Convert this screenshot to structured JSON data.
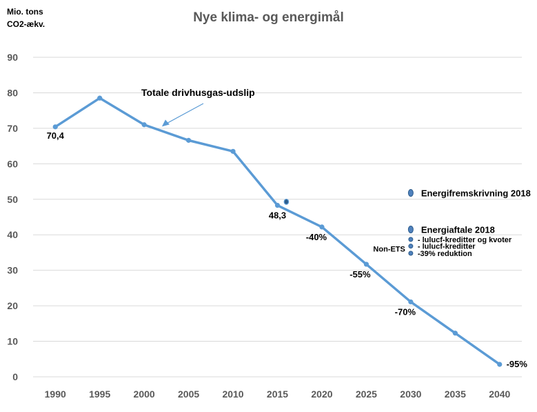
{
  "chart_data": {
    "type": "line",
    "title": "Nye klima- og energimål",
    "ylabel_lines": [
      "Mio. tons",
      "CO2-ækv."
    ],
    "xlabel": "",
    "ylim": [
      0,
      90
    ],
    "yticks": [
      0,
      10,
      20,
      30,
      40,
      50,
      60,
      70,
      80,
      90
    ],
    "xlim": [
      1987.5,
      2042.5
    ],
    "xticks": [
      1990,
      1995,
      2000,
      2005,
      2010,
      2015,
      2020,
      2025,
      2030,
      2035,
      2040
    ],
    "grid": "horizontal",
    "series": [
      {
        "name": "Totale drivhusgas-udslip",
        "x": [
          1990,
          1995,
          2000,
          2005,
          2010,
          2015,
          2020,
          2025,
          2030,
          2035,
          2040
        ],
        "y": [
          70.4,
          78.5,
          71.0,
          66.6,
          63.5,
          48.3,
          42.2,
          31.7,
          21.1,
          12.3,
          3.5
        ]
      }
    ],
    "extra_points": [
      {
        "x": 2016,
        "y": 49.3
      }
    ],
    "data_labels": [
      {
        "x": 1990,
        "y": 70.4,
        "text": "70,4"
      },
      {
        "x": 2015,
        "y": 48.3,
        "text": "48,3"
      },
      {
        "x": 2020,
        "y": 42.2,
        "text": "-40%"
      },
      {
        "x": 2025,
        "y": 31.7,
        "text": "-55%"
      },
      {
        "x": 2030,
        "y": 21.1,
        "text": "-70%"
      },
      {
        "x": 2040,
        "y": 3.5,
        "text": "-95%"
      }
    ],
    "annotation": {
      "text": "Totale drivhusgas-udslip",
      "arrow_to": {
        "x": 2002,
        "y": 70.5
      }
    },
    "markers_2030": [
      {
        "y": 51.8,
        "text": "Energifremskrivning 2018",
        "bold": true
      },
      {
        "y": 41.5,
        "text": "Energiaftale 2018",
        "bold": true
      },
      {
        "y": 38.7,
        "text": "- lulucf-kreditter og kvoter",
        "bold": false
      },
      {
        "y": 36.8,
        "text": "- lulucf-kreditter",
        "bold": false
      },
      {
        "y": 34.8,
        "text": "-39% reduktion",
        "bold": false
      }
    ],
    "side_label": {
      "text": "Non-ETS",
      "y": 36.1
    },
    "colors": {
      "line": "#5b9bd5",
      "marker": "#4f81bd",
      "marker_dark": "#2e5d8c",
      "grid": "#d9d9d9",
      "tick_label": "#595959",
      "text": "#000000"
    }
  }
}
